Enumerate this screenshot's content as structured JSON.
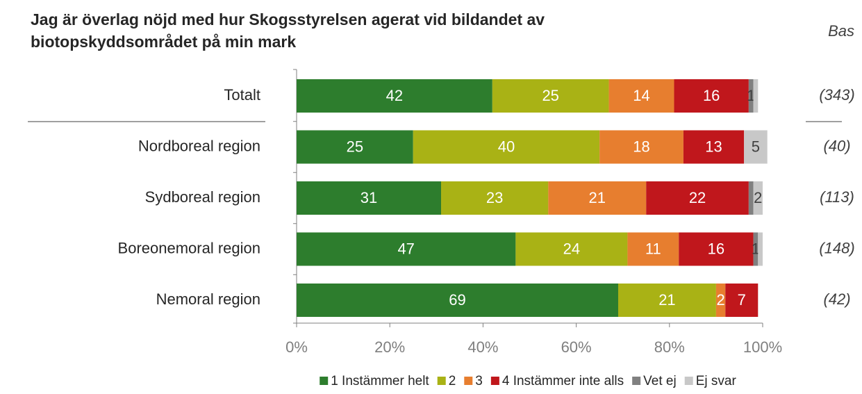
{
  "chart_data": {
    "type": "stacked-barh",
    "title": [
      "Jag är överlag nöjd med hur Skogsstyrelsen agerat vid bildandet av",
      "biotopskyddsområdet på min mark"
    ],
    "bas_label": "Bas",
    "categories": [
      "Totalt",
      "Nordboreal region",
      "Sydboreal region",
      "Boreonemoral region",
      "Nemoral region"
    ],
    "bas": [
      "(343)",
      "(40)",
      "(113)",
      "(148)",
      "(42)"
    ],
    "series": [
      {
        "name": "1 Instämmer helt",
        "color": "#2d7d2d",
        "values": [
          42,
          25,
          31,
          47,
          69
        ],
        "value_labels": [
          "42",
          "25",
          "31",
          "47",
          "69"
        ]
      },
      {
        "name": "2",
        "color": "#a9b215",
        "values": [
          25,
          40,
          23,
          24,
          21
        ],
        "value_labels": [
          "25",
          "40",
          "23",
          "24",
          "21"
        ]
      },
      {
        "name": "3",
        "color": "#e77e2f",
        "values": [
          14,
          18,
          21,
          11,
          2
        ],
        "value_labels": [
          "14",
          "18",
          "21",
          "11",
          "2"
        ]
      },
      {
        "name": "4 Instämmer inte alls",
        "color": "#c0171c",
        "values": [
          16,
          13,
          22,
          16,
          7
        ],
        "value_labels": [
          "16",
          "13",
          "22",
          "16",
          "7"
        ]
      },
      {
        "name": "Vet ej",
        "color": "#808080",
        "values": [
          1,
          0,
          1,
          1,
          0
        ],
        "value_labels": [
          "1",
          null,
          null,
          "1",
          null
        ]
      },
      {
        "name": "Ej svar",
        "color": "#c8c8c8",
        "values": [
          1,
          5,
          2,
          1,
          0
        ],
        "value_labels": [
          null,
          "5",
          "2",
          null,
          null
        ]
      }
    ],
    "xlim": [
      0,
      100
    ],
    "xticks": [
      {
        "value": 0,
        "label": "0%"
      },
      {
        "value": 20,
        "label": "20%"
      },
      {
        "value": 40,
        "label": "40%"
      },
      {
        "value": 60,
        "label": "60%"
      },
      {
        "value": 80,
        "label": "80%"
      },
      {
        "value": 100,
        "label": "100%"
      }
    ]
  }
}
